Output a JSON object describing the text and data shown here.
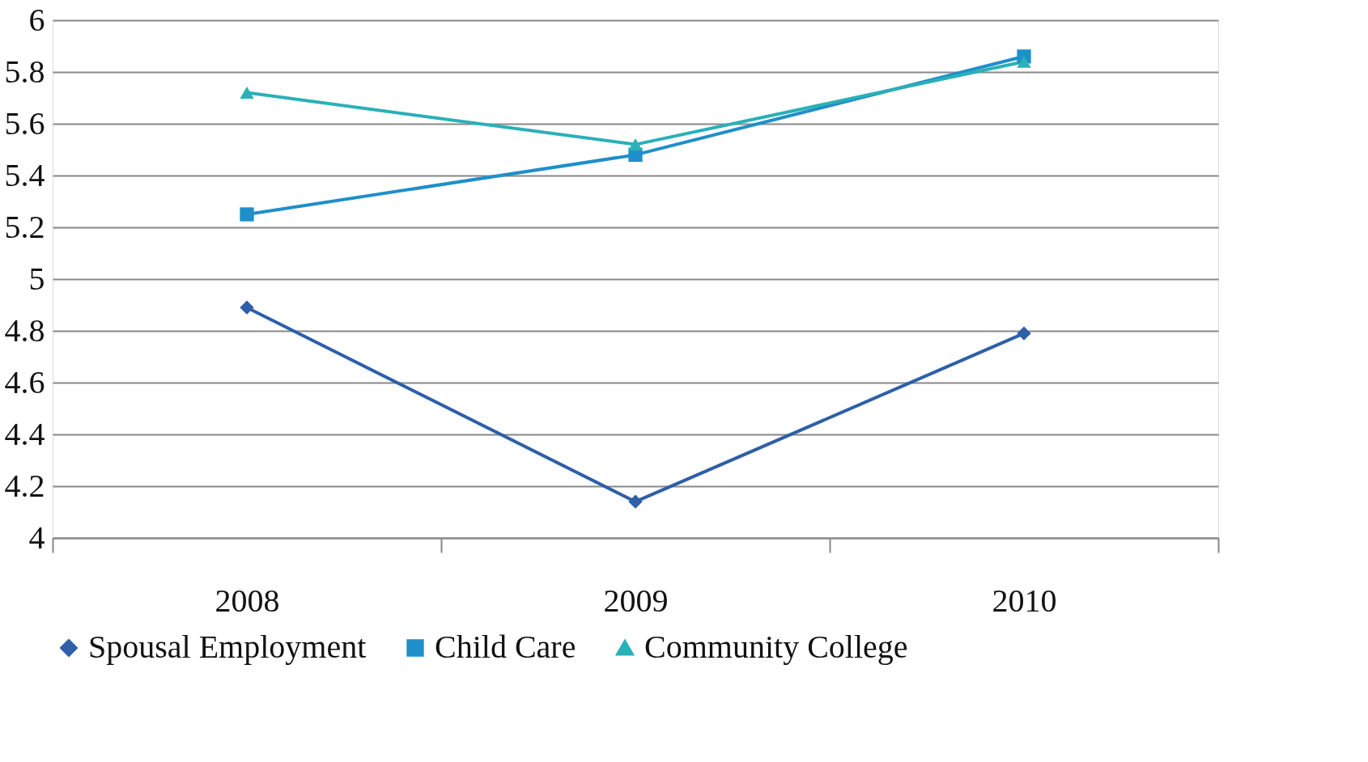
{
  "chart_data": {
    "type": "line",
    "categories": [
      "2008",
      "2009",
      "2010"
    ],
    "series": [
      {
        "name": "Spousal Employment",
        "color": "#2e5fa8",
        "marker": "diamond",
        "values": [
          4.89,
          4.14,
          4.79
        ]
      },
      {
        "name": "Child Care",
        "color": "#1f8fc9",
        "marker": "square",
        "values": [
          5.25,
          5.48,
          5.86
        ]
      },
      {
        "name": "Community College",
        "color": "#2ab0b8",
        "marker": "triangle",
        "values": [
          5.72,
          5.52,
          5.84
        ]
      }
    ],
    "ylim": [
      4,
      6
    ],
    "yticks": [
      4,
      4.2,
      4.4,
      4.6,
      4.8,
      5,
      5.2,
      5.4,
      5.6,
      5.8,
      6
    ],
    "grid": "y",
    "legend": "bottom",
    "line_style": "solid"
  }
}
